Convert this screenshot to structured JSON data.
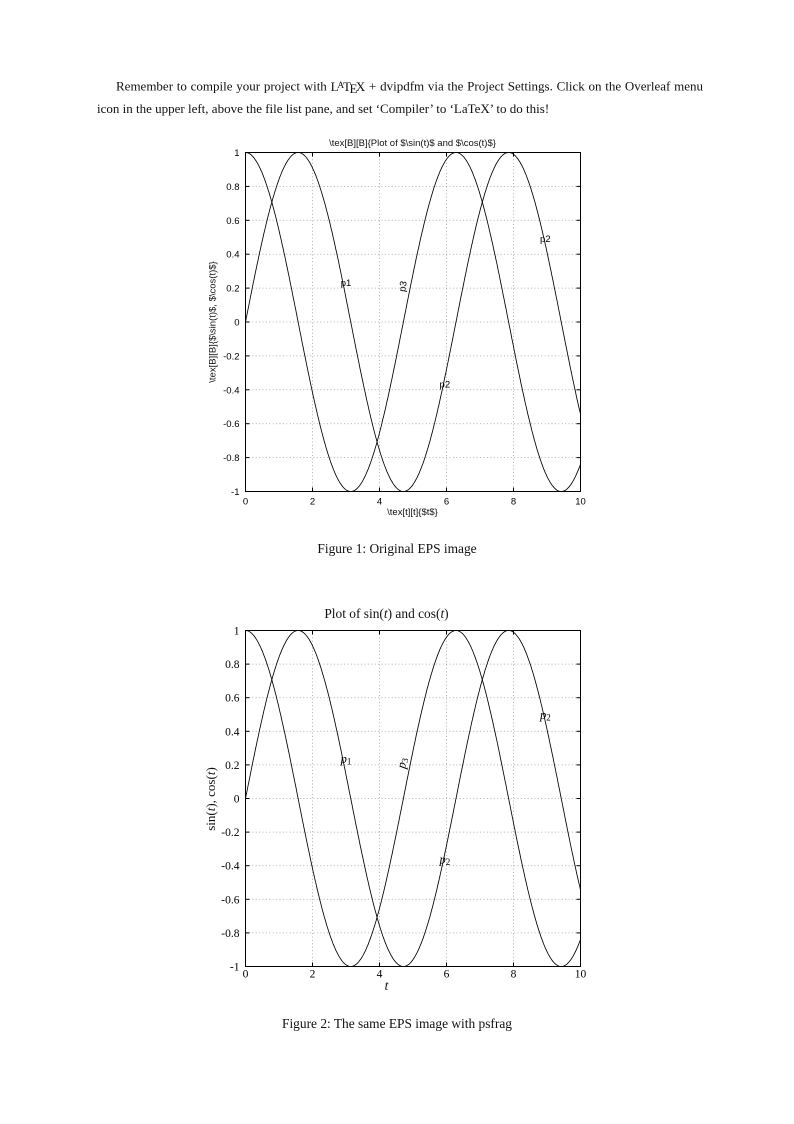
{
  "intro": {
    "before_logo": "Remember to compile your project with ",
    "latex_logo": {
      "l": "L",
      "a": "A",
      "t": "T",
      "e": "E",
      "x": "X"
    },
    "after_logo": " + dvipdfm via the Project Settings. Click on the Overleaf menu icon in the upper left, above the file list pane, and set ‘Compiler’ to ‘LaTeX’ to do this!"
  },
  "figure1": {
    "caption": "Figure 1: Original EPS image"
  },
  "figure2": {
    "caption": "Figure 2: The same EPS image with psfrag"
  },
  "chart_data": [
    {
      "id": "figure1",
      "type": "line",
      "title": "\\tex[B][B]{Plot of $\\sin(t)$ and $\\cos(t)$}",
      "xlabel": "\\tex[t][t]{$t$}",
      "ylabel": "\\tex[B][B]{$\\sin(t)$, $\\cos(t)$}",
      "x_range": [
        0,
        10
      ],
      "y_range": [
        -1,
        1
      ],
      "xticks": [
        0,
        2,
        4,
        6,
        8,
        10
      ],
      "yticks": [
        1,
        0.8,
        0.6,
        0.4,
        0.2,
        0,
        -0.2,
        -0.4,
        -0.6,
        -0.8,
        -1
      ],
      "grid": "dotted",
      "legend": "none",
      "series": [
        {
          "name": "sin(t)",
          "fn": "sin"
        },
        {
          "name": "cos(t)",
          "fn": "cos"
        }
      ],
      "annotations": [
        {
          "label": "p1",
          "x": 3.0,
          "y": 0.23,
          "rotate": 0
        },
        {
          "label": "p3",
          "x": 4.7,
          "y": 0.21,
          "rotate": -80
        },
        {
          "label": "p2",
          "x": 8.95,
          "y": 0.49,
          "rotate": 0
        },
        {
          "label": "p2",
          "x": 5.95,
          "y": -0.37,
          "rotate": 0
        }
      ]
    },
    {
      "id": "figure2",
      "type": "line",
      "title": "Plot of sin(t) and cos(t)",
      "title_parts": [
        [
          "Plot of sin(",
          0
        ],
        [
          "t",
          1
        ],
        [
          ") and cos(",
          0
        ],
        [
          "t",
          1
        ],
        [
          ")",
          0
        ]
      ],
      "xlabel": "t",
      "xlabel_parts": [
        [
          "t",
          1
        ]
      ],
      "ylabel": "sin(t), cos(t)",
      "ylabel_parts": [
        [
          "sin(",
          0
        ],
        [
          "t",
          1
        ],
        [
          "), cos(",
          0
        ],
        [
          "t",
          1
        ],
        [
          ")",
          0
        ]
      ],
      "x_range": [
        0,
        10
      ],
      "y_range": [
        -1,
        1
      ],
      "xticks": [
        0,
        2,
        4,
        6,
        8,
        10
      ],
      "yticks": [
        1,
        0.8,
        0.6,
        0.4,
        0.2,
        0,
        -0.2,
        -0.4,
        -0.6,
        -0.8,
        -1
      ],
      "grid": "dotted",
      "legend": "none",
      "series": [
        {
          "name": "sin(t)",
          "fn": "sin"
        },
        {
          "name": "cos(t)",
          "fn": "cos"
        }
      ],
      "annotations": [
        {
          "label": "p",
          "sub": "1",
          "x": 3.0,
          "y": 0.23,
          "rotate": 0
        },
        {
          "label": "p",
          "sub": "3",
          "x": 4.7,
          "y": 0.21,
          "rotate": -80
        },
        {
          "label": "p",
          "sub": "2",
          "x": 8.95,
          "y": 0.49,
          "rotate": 0
        },
        {
          "label": "p",
          "sub": "2",
          "x": 5.95,
          "y": -0.37,
          "rotate": 0
        }
      ]
    }
  ]
}
